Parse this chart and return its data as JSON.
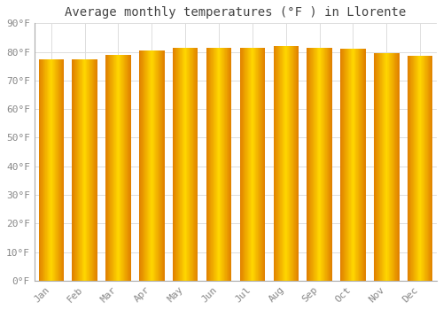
{
  "title": "Average monthly temperatures (°F ) in Llorente",
  "months": [
    "Jan",
    "Feb",
    "Mar",
    "Apr",
    "May",
    "Jun",
    "Jul",
    "Aug",
    "Sep",
    "Oct",
    "Nov",
    "Dec"
  ],
  "values": [
    77.5,
    77.5,
    79.0,
    80.5,
    81.5,
    81.5,
    81.5,
    82.0,
    81.5,
    81.0,
    79.5,
    78.5
  ],
  "ylim": [
    0,
    90
  ],
  "yticks": [
    0,
    10,
    20,
    30,
    40,
    50,
    60,
    70,
    80,
    90
  ],
  "ytick_labels": [
    "0°F",
    "10°F",
    "20°F",
    "30°F",
    "40°F",
    "50°F",
    "60°F",
    "70°F",
    "80°F",
    "90°F"
  ],
  "bar_color_center": "#FFD700",
  "bar_color_edge": "#E08000",
  "background_color": "#FFFFFF",
  "grid_color": "#DDDDDD",
  "title_fontsize": 10,
  "tick_fontsize": 8,
  "font_family": "monospace",
  "bar_width": 0.75,
  "n_gradient_steps": 50
}
